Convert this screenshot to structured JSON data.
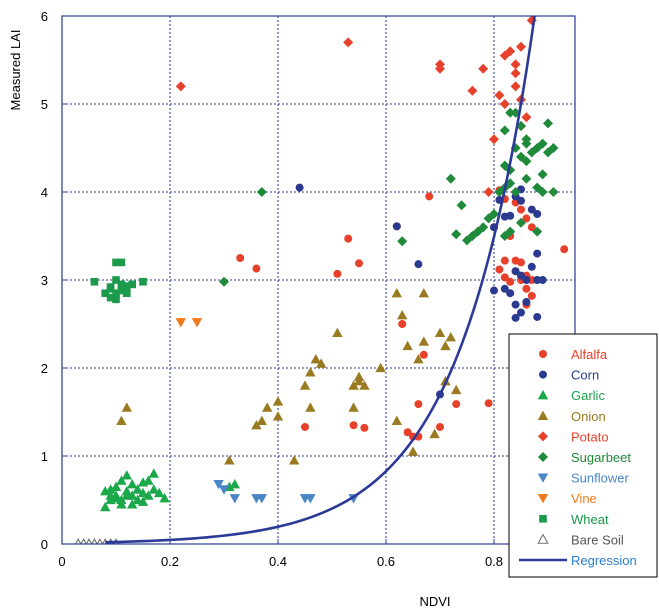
{
  "chart_data": {
    "type": "scatter",
    "title": "",
    "xlabel": "NDVI",
    "ylabel": "Measured LAI",
    "xlim": [
      0,
      0.95
    ],
    "ylim": [
      0,
      6
    ],
    "x_ticks": [
      "0",
      "0.2",
      "0.4",
      "0.6",
      "0.8"
    ],
    "y_ticks": [
      "0",
      "1",
      "2",
      "3",
      "4",
      "5",
      "6"
    ],
    "x_tick_values": [
      0,
      0.2,
      0.4,
      0.6,
      0.8
    ],
    "y_tick_values": [
      0,
      1,
      2,
      3,
      4,
      5,
      6
    ],
    "grid": true,
    "legend_position": "bottom-right",
    "series": [
      {
        "name": "Alfalfa",
        "marker": "circle",
        "color": "#e8412b",
        "points": [
          [
            0.33,
            3.25
          ],
          [
            0.36,
            3.13
          ],
          [
            0.51,
            3.07
          ],
          [
            0.53,
            3.47
          ],
          [
            0.55,
            3.19
          ],
          [
            0.62,
            3.61
          ],
          [
            0.63,
            2.5
          ],
          [
            0.67,
            2.15
          ],
          [
            0.54,
            1.35
          ],
          [
            0.56,
            1.32
          ],
          [
            0.45,
            1.33
          ],
          [
            0.64,
            1.27
          ],
          [
            0.65,
            1.22
          ],
          [
            0.66,
            1.22
          ],
          [
            0.66,
            1.59
          ],
          [
            0.7,
            1.33
          ],
          [
            0.73,
            1.59
          ],
          [
            0.79,
            1.6
          ],
          [
            0.68,
            3.95
          ],
          [
            0.8,
            3.6
          ],
          [
            0.81,
            4.02
          ],
          [
            0.82,
            3.92
          ],
          [
            0.83,
            3.5
          ],
          [
            0.81,
            3.12
          ],
          [
            0.82,
            3.22
          ],
          [
            0.84,
            3.22
          ],
          [
            0.85,
            3.2
          ],
          [
            0.86,
            3.05
          ],
          [
            0.87,
            3.0
          ],
          [
            0.82,
            3.03
          ],
          [
            0.83,
            2.98
          ],
          [
            0.84,
            3.1
          ],
          [
            0.85,
            3.0
          ],
          [
            0.86,
            2.9
          ],
          [
            0.86,
            2.72
          ],
          [
            0.87,
            2.82
          ],
          [
            0.84,
            3.88
          ],
          [
            0.85,
            3.8
          ],
          [
            0.86,
            3.7
          ],
          [
            0.87,
            3.6
          ],
          [
            0.93,
            3.35
          ],
          [
            0.97,
            3.35
          ]
        ]
      },
      {
        "name": "Corn",
        "marker": "circle",
        "color": "#2b3a8f",
        "points": [
          [
            0.44,
            4.05
          ],
          [
            0.62,
            3.61
          ],
          [
            0.66,
            3.18
          ],
          [
            0.7,
            1.7
          ],
          [
            0.8,
            2.88
          ],
          [
            0.8,
            3.6
          ],
          [
            0.81,
            3.91
          ],
          [
            0.82,
            3.72
          ],
          [
            0.83,
            3.73
          ],
          [
            0.84,
            3.95
          ],
          [
            0.85,
            4.03
          ],
          [
            0.85,
            3.9
          ],
          [
            0.84,
            3.1
          ],
          [
            0.85,
            3.05
          ],
          [
            0.86,
            3.0
          ],
          [
            0.87,
            3.15
          ],
          [
            0.88,
            3.3
          ],
          [
            0.82,
            2.9
          ],
          [
            0.83,
            2.85
          ],
          [
            0.84,
            2.72
          ],
          [
            0.84,
            2.57
          ],
          [
            0.85,
            2.63
          ],
          [
            0.86,
            2.75
          ],
          [
            0.88,
            2.58
          ],
          [
            0.88,
            3.0
          ],
          [
            0.89,
            3.0
          ],
          [
            0.87,
            3.8
          ],
          [
            0.88,
            3.75
          ]
        ]
      },
      {
        "name": "Garlic",
        "marker": "triangle-up",
        "color": "#1aa84a",
        "points": [
          [
            0.08,
            0.42
          ],
          [
            0.09,
            0.5
          ],
          [
            0.1,
            0.55
          ],
          [
            0.11,
            0.5
          ],
          [
            0.12,
            0.6
          ],
          [
            0.13,
            0.55
          ],
          [
            0.14,
            0.62
          ],
          [
            0.15,
            0.7
          ],
          [
            0.16,
            0.55
          ],
          [
            0.17,
            0.62
          ],
          [
            0.18,
            0.58
          ],
          [
            0.19,
            0.52
          ],
          [
            0.08,
            0.6
          ],
          [
            0.09,
            0.62
          ],
          [
            0.1,
            0.65
          ],
          [
            0.11,
            0.72
          ],
          [
            0.12,
            0.78
          ],
          [
            0.13,
            0.68
          ],
          [
            0.14,
            0.62
          ],
          [
            0.15,
            0.58
          ],
          [
            0.16,
            0.72
          ],
          [
            0.17,
            0.8
          ],
          [
            0.1,
            0.52
          ],
          [
            0.11,
            0.45
          ],
          [
            0.13,
            0.45
          ],
          [
            0.14,
            0.5
          ],
          [
            0.15,
            0.48
          ],
          [
            0.12,
            0.55
          ],
          [
            0.09,
            0.55
          ],
          [
            0.31,
            0.65
          ],
          [
            0.32,
            0.68
          ]
        ]
      },
      {
        "name": "Onion",
        "marker": "triangle-up",
        "color": "#9a7a20",
        "points": [
          [
            0.11,
            1.4
          ],
          [
            0.12,
            1.55
          ],
          [
            0.31,
            0.95
          ],
          [
            0.36,
            1.35
          ],
          [
            0.37,
            1.4
          ],
          [
            0.38,
            1.55
          ],
          [
            0.4,
            1.62
          ],
          [
            0.4,
            1.45
          ],
          [
            0.43,
            0.95
          ],
          [
            0.45,
            1.8
          ],
          [
            0.46,
            1.95
          ],
          [
            0.46,
            1.55
          ],
          [
            0.47,
            2.1
          ],
          [
            0.48,
            2.05
          ],
          [
            0.51,
            2.4
          ],
          [
            0.54,
            1.55
          ],
          [
            0.54,
            1.8
          ],
          [
            0.55,
            1.9
          ],
          [
            0.55,
            1.85
          ],
          [
            0.56,
            1.8
          ],
          [
            0.59,
            2.0
          ],
          [
            0.62,
            1.4
          ],
          [
            0.62,
            2.85
          ],
          [
            0.63,
            2.6
          ],
          [
            0.64,
            2.25
          ],
          [
            0.65,
            1.05
          ],
          [
            0.66,
            2.1
          ],
          [
            0.67,
            2.3
          ],
          [
            0.67,
            2.85
          ],
          [
            0.69,
            1.25
          ],
          [
            0.7,
            2.4
          ],
          [
            0.71,
            2.25
          ],
          [
            0.72,
            2.35
          ],
          [
            0.73,
            1.75
          ],
          [
            0.71,
            1.85
          ]
        ]
      },
      {
        "name": "Potato",
        "marker": "diamond",
        "color": "#e8412b",
        "points": [
          [
            0.22,
            5.2
          ],
          [
            0.53,
            5.7
          ],
          [
            0.7,
            5.4
          ],
          [
            0.7,
            5.45
          ],
          [
            0.76,
            5.15
          ],
          [
            0.78,
            5.4
          ],
          [
            0.79,
            4.0
          ],
          [
            0.8,
            4.6
          ],
          [
            0.81,
            5.1
          ],
          [
            0.82,
            5.55
          ],
          [
            0.82,
            5.0
          ],
          [
            0.83,
            5.6
          ],
          [
            0.84,
            5.45
          ],
          [
            0.84,
            5.35
          ],
          [
            0.84,
            5.2
          ],
          [
            0.85,
            5.05
          ],
          [
            0.86,
            4.85
          ],
          [
            0.85,
            4.75
          ],
          [
            0.87,
            5.95
          ],
          [
            0.85,
            5.65
          ]
        ]
      },
      {
        "name": "Sugarbeet",
        "marker": "diamond",
        "color": "#1f8a3a",
        "points": [
          [
            0.3,
            2.98
          ],
          [
            0.37,
            4.0
          ],
          [
            0.63,
            3.44
          ],
          [
            0.72,
            4.15
          ],
          [
            0.73,
            3.52
          ],
          [
            0.74,
            3.85
          ],
          [
            0.75,
            3.45
          ],
          [
            0.76,
            3.5
          ],
          [
            0.77,
            3.55
          ],
          [
            0.78,
            3.6
          ],
          [
            0.79,
            3.7
          ],
          [
            0.8,
            3.75
          ],
          [
            0.81,
            4.0
          ],
          [
            0.82,
            4.05
          ],
          [
            0.83,
            4.1
          ],
          [
            0.82,
            4.3
          ],
          [
            0.83,
            4.25
          ],
          [
            0.84,
            4.5
          ],
          [
            0.85,
            4.4
          ],
          [
            0.86,
            4.35
          ],
          [
            0.82,
            4.7
          ],
          [
            0.83,
            4.9
          ],
          [
            0.84,
            4.9
          ],
          [
            0.85,
            4.75
          ],
          [
            0.86,
            4.6
          ],
          [
            0.87,
            4.45
          ],
          [
            0.88,
            4.5
          ],
          [
            0.89,
            4.55
          ],
          [
            0.9,
            4.45
          ],
          [
            0.91,
            4.5
          ],
          [
            0.9,
            4.78
          ],
          [
            0.89,
            4.0
          ],
          [
            0.91,
            4.0
          ],
          [
            0.88,
            4.05
          ],
          [
            0.86,
            4.15
          ],
          [
            0.84,
            4.0
          ],
          [
            0.82,
            3.5
          ],
          [
            0.83,
            3.55
          ],
          [
            0.85,
            3.65
          ],
          [
            0.88,
            3.55
          ],
          [
            0.89,
            4.2
          ],
          [
            0.86,
            4.55
          ]
        ]
      },
      {
        "name": "Sunflower",
        "marker": "triangle-down",
        "color": "#4a86c6",
        "points": [
          [
            0.29,
            0.68
          ],
          [
            0.3,
            0.62
          ],
          [
            0.32,
            0.52
          ],
          [
            0.36,
            0.52
          ],
          [
            0.37,
            0.52
          ],
          [
            0.45,
            0.52
          ],
          [
            0.46,
            0.52
          ],
          [
            0.54,
            0.52
          ]
        ]
      },
      {
        "name": "Vine",
        "marker": "triangle-down",
        "color": "#f07a1a",
        "points": [
          [
            0.22,
            2.52
          ],
          [
            0.25,
            2.52
          ]
        ]
      },
      {
        "name": "Wheat",
        "marker": "square",
        "color": "#1a9a4a",
        "points": [
          [
            0.06,
            2.98
          ],
          [
            0.08,
            2.85
          ],
          [
            0.09,
            2.92
          ],
          [
            0.1,
            2.85
          ],
          [
            0.1,
            2.78
          ],
          [
            0.09,
            2.8
          ],
          [
            0.1,
            3.0
          ],
          [
            0.11,
            2.95
          ],
          [
            0.11,
            2.88
          ],
          [
            0.12,
            2.85
          ],
          [
            0.12,
            2.93
          ],
          [
            0.13,
            2.95
          ],
          [
            0.15,
            2.98
          ],
          [
            0.1,
            3.2
          ],
          [
            0.11,
            3.2
          ],
          [
            0.09,
            2.9
          ]
        ]
      },
      {
        "name": "Bare Soil",
        "marker": "triangle-up-open",
        "color": "#707070",
        "points": [
          [
            0.03,
            0.0
          ],
          [
            0.04,
            0.0
          ],
          [
            0.05,
            0.0
          ],
          [
            0.06,
            0.0
          ],
          [
            0.07,
            0.0
          ],
          [
            0.08,
            0.0
          ],
          [
            0.09,
            0.0
          ],
          [
            0.1,
            0.0
          ]
        ]
      },
      {
        "name": "Regression",
        "marker": "line",
        "color": "#2b3a96",
        "line": {
          "type": "exponential",
          "a": 0.011,
          "b": 7.2,
          "x_range": [
            0.08,
            0.88
          ]
        }
      }
    ]
  }
}
